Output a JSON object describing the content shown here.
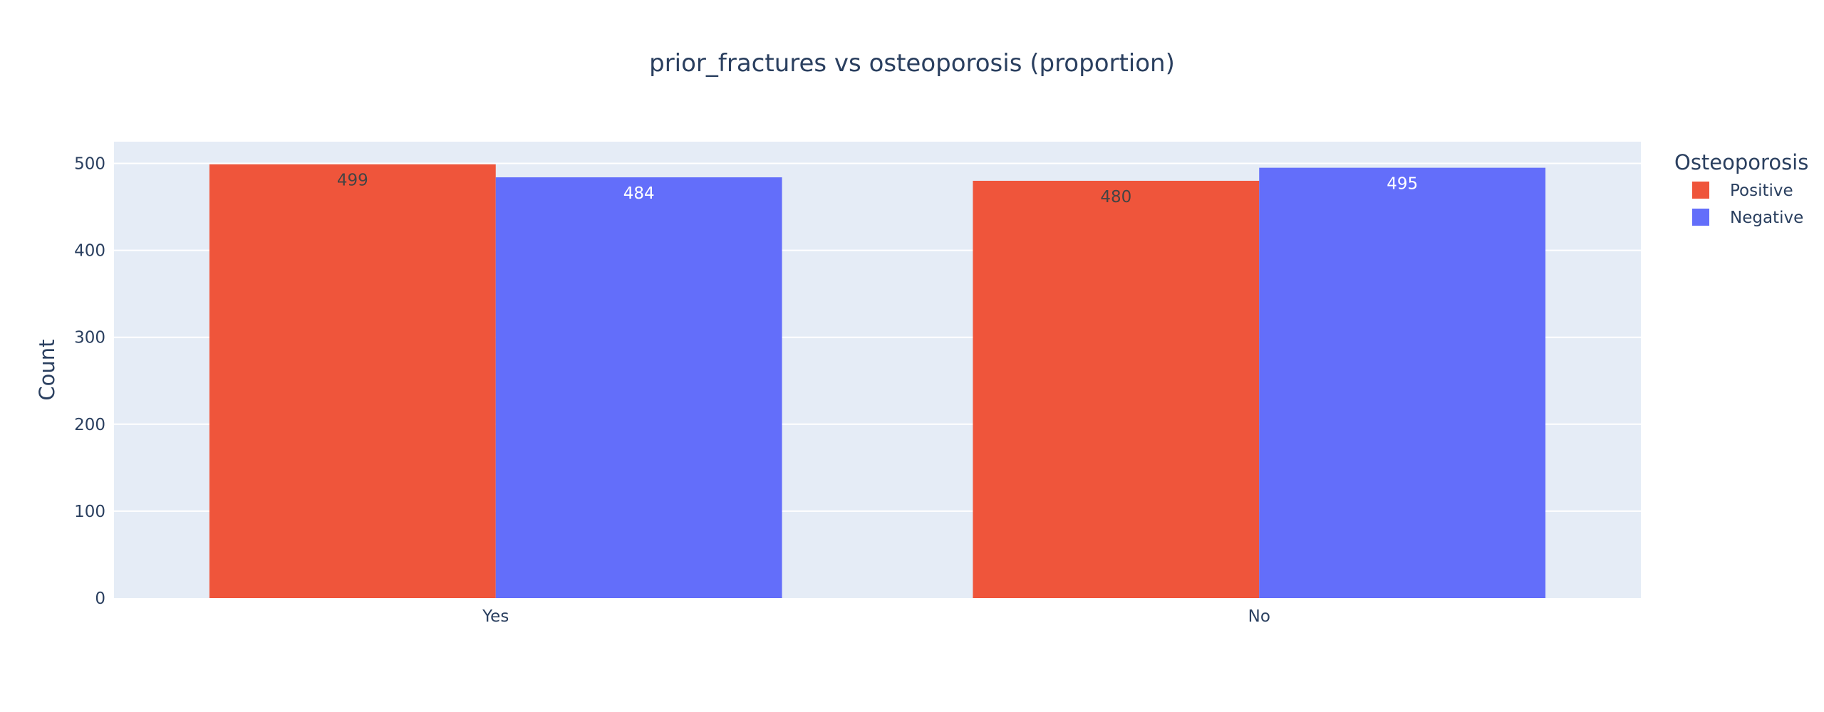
{
  "chart_data": {
    "type": "bar",
    "title": "prior_fractures vs osteoporosis (proportion)",
    "xlabel": "",
    "ylabel": "Count",
    "categories": [
      "Yes",
      "No"
    ],
    "series": [
      {
        "name": "Positive",
        "values": [
          499,
          480
        ],
        "color": "#EF553B",
        "label_color": "#444444"
      },
      {
        "name": "Negative",
        "values": [
          484,
          495
        ],
        "color": "#636EFA",
        "label_color": "#ffffff"
      }
    ],
    "ylim": [
      0,
      525
    ],
    "yticks": [
      0,
      100,
      200,
      300,
      400,
      500
    ],
    "grid": true,
    "legend": {
      "title": "Osteoporosis",
      "placement": "top-right"
    },
    "plot_background": "#E5ECF6",
    "gridline_color": "#ffffff"
  }
}
